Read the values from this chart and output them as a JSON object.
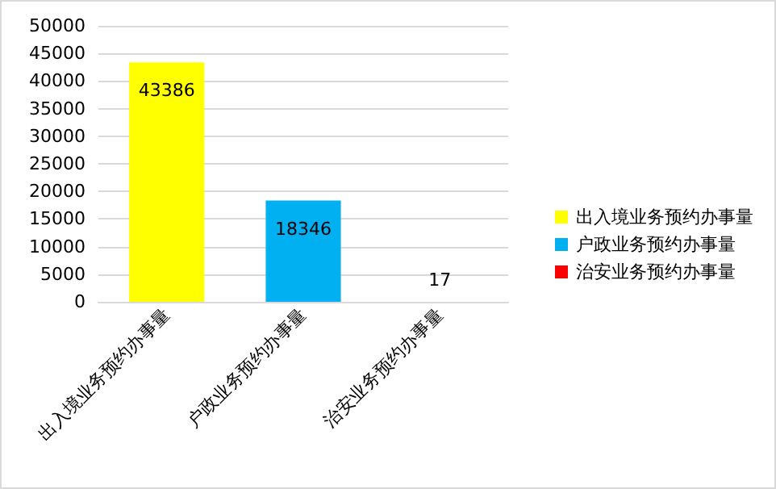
{
  "chart_data": {
    "type": "bar",
    "categories": [
      "出入境业务预约办事量",
      "户政业务预约办事量",
      "治安业务预约办事量"
    ],
    "series": [
      {
        "name": "出入境业务预约办事量",
        "color": "#ffff00",
        "values": [
          43386,
          null,
          null
        ]
      },
      {
        "name": "户政业务预约办事量",
        "color": "#00b0f0",
        "values": [
          null,
          18346,
          null
        ]
      },
      {
        "name": "治安业务预约办事量",
        "color": "#ff0000",
        "values": [
          null,
          null,
          17
        ]
      }
    ],
    "stacked": true,
    "ylim": [
      0,
      50000
    ],
    "yticks": [
      0,
      5000,
      10000,
      15000,
      20000,
      25000,
      30000,
      35000,
      40000,
      45000,
      50000
    ],
    "grid": "y",
    "legend": "right",
    "data_labels": true
  }
}
